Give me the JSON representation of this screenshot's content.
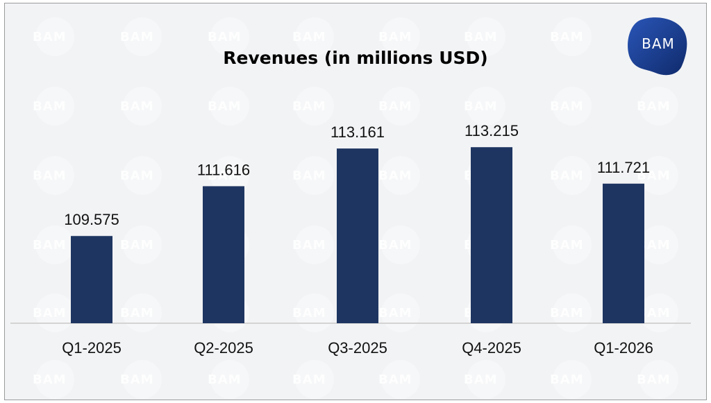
{
  "logo": {
    "text": "BAM"
  },
  "watermark": {
    "text": "BAM"
  },
  "colors": {
    "bar": "#1e3561",
    "background": "#f2f3f5",
    "logo": "#1f3f8f",
    "axis": "#c9c9c9"
  },
  "chart_data": {
    "type": "bar",
    "title": "Revenues (in millions USD)",
    "categories": [
      "Q1-2025",
      "Q2-2025",
      "Q3-2025",
      "Q4-2025",
      "Q1-2026"
    ],
    "values": [
      109.575,
      111.616,
      113.161,
      113.215,
      111.721
    ],
    "value_labels": [
      "109.575",
      "111.616",
      "113.161",
      "113.215",
      "111.721"
    ],
    "ylim": [
      106,
      114.5
    ],
    "grid": false,
    "legend": "none"
  }
}
